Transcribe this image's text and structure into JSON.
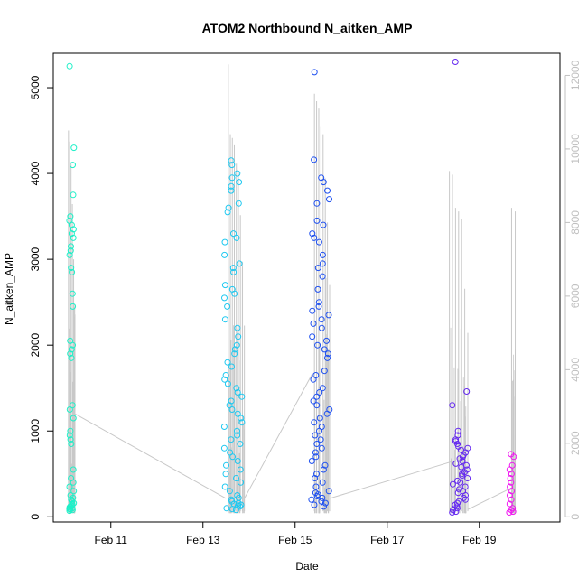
{
  "chart_data": {
    "type": "scatter",
    "title": "ATOM2 Northbound N_aitken_AMP",
    "xlabel": "Date",
    "ylabel": "N_aitken_AMP",
    "x_ticks": [
      "Feb 11",
      "Feb 13",
      "Feb 15",
      "Feb 17",
      "Feb 19"
    ],
    "x_tick_days": [
      11,
      13,
      15,
      17,
      19
    ],
    "xlim": [
      9.75,
      20.75
    ],
    "ylim_left": [
      -60,
      5400
    ],
    "y_ticks_left": [
      "0",
      "1000",
      "2000",
      "3000",
      "4000",
      "5000"
    ],
    "y_tick_values_left": [
      0,
      1000,
      2000,
      3000,
      4000,
      5000
    ],
    "ylim_right": [
      -140,
      12600
    ],
    "y_ticks_right": [
      "0",
      "2000",
      "4000",
      "6000",
      "8000",
      "10000",
      "12000"
    ],
    "y_tick_values_right": [
      0,
      2000,
      4000,
      6000,
      8000,
      10000,
      12000
    ],
    "colors": {
      "gray_series": "#c8c8c8",
      "gradient_start": "#00ffb4",
      "gradient_mid": "#0050ff",
      "gradient_end": "#ff00ff",
      "right_axis": "#c0c0c0"
    },
    "groups": [
      {
        "x_range": [
          10.1,
          10.2
        ],
        "color": "#1ef0c8",
        "y": [
          5250,
          4300,
          4100,
          3750,
          3500,
          3450,
          3400,
          3350,
          3300,
          3250,
          3150,
          3100,
          3050,
          2900,
          2850,
          2600,
          2450,
          2050,
          2000,
          1950,
          1900,
          1850,
          1300,
          1250,
          1150,
          1000,
          950,
          900,
          850,
          550,
          450,
          400,
          350,
          300,
          250,
          220,
          200,
          180,
          160,
          150,
          140,
          130,
          120,
          110,
          100,
          95,
          90,
          85,
          80,
          70
        ]
      },
      {
        "x_range": [
          13.45,
          13.85
        ],
        "color": "#1ec8f0",
        "y": [
          4150,
          4100,
          4000,
          3950,
          3900,
          3850,
          3800,
          3650,
          3600,
          3550,
          3300,
          3250,
          3200,
          3050,
          2950,
          2900,
          2850,
          2700,
          2650,
          2600,
          2550,
          2450,
          2300,
          2200,
          2100,
          2000,
          1950,
          1900,
          1800,
          1750,
          1650,
          1600,
          1550,
          1500,
          1450,
          1400,
          1350,
          1300,
          1250,
          1200,
          1150,
          1100,
          1050,
          1000,
          950,
          900,
          850,
          800,
          750,
          700,
          650,
          600,
          550,
          500,
          450,
          400,
          350,
          300,
          250,
          220,
          200,
          180,
          160,
          150,
          140,
          130,
          120,
          100,
          90,
          80
        ]
      },
      {
        "x_range": [
          15.35,
          15.75
        ],
        "color": "#1e50f0",
        "y": [
          5180,
          4160,
          3950,
          3900,
          3800,
          3700,
          3650,
          3450,
          3400,
          3300,
          3250,
          3200,
          3050,
          2950,
          2900,
          2800,
          2650,
          2500,
          2450,
          2400,
          2350,
          2300,
          2250,
          2200,
          2100,
          2050,
          2000,
          1950,
          1900,
          1850,
          1700,
          1650,
          1600,
          1500,
          1450,
          1400,
          1350,
          1300,
          1250,
          1200,
          1150,
          1100,
          1050,
          1000,
          950,
          900,
          850,
          800,
          750,
          700,
          650,
          600,
          550,
          500,
          450,
          400,
          350,
          300,
          280,
          260,
          240,
          220,
          200,
          180,
          160,
          140,
          120
        ]
      },
      {
        "x_range": [
          18.4,
          18.75
        ],
        "color": "#6428f0",
        "y": [
          5300,
          1460,
          1300,
          1000,
          950,
          900,
          880,
          850,
          820,
          800,
          780,
          750,
          720,
          700,
          680,
          650,
          620,
          600,
          580,
          550,
          520,
          500,
          480,
          450,
          420,
          400,
          380,
          350,
          320,
          300,
          280,
          250,
          220,
          200,
          180,
          160,
          140,
          120,
          100,
          80,
          60,
          50
        ]
      },
      {
        "x_range": [
          19.65,
          19.75
        ],
        "color": "#f014f0",
        "y": [
          730,
          700,
          600,
          550,
          500,
          450,
          400,
          350,
          300,
          250,
          200,
          150,
          100,
          80,
          60,
          50
        ]
      }
    ],
    "gray_bursts": [
      {
        "x_range": [
          10.08,
          10.22
        ],
        "peaks_right": [
          10500,
          10200,
          9600,
          8500,
          7000,
          5500
        ]
      },
      {
        "x_range": [
          13.55,
          13.9
        ],
        "peaks_right": [
          12300,
          10400,
          10300,
          10100,
          9600,
          9400,
          8200,
          6800,
          5200
        ]
      },
      {
        "x_range": [
          15.42,
          15.75
        ],
        "peaks_right": [
          11500,
          11300,
          11100,
          10600,
          10400,
          9200,
          8000,
          6300
        ]
      },
      {
        "x_range": [
          18.35,
          18.75
        ],
        "peaks_right": [
          9400,
          9300,
          8400,
          8300,
          8100,
          6200,
          5000
        ]
      },
      {
        "x_range": [
          19.7,
          19.78
        ],
        "peaks_right": [
          8400,
          8300
        ]
      }
    ],
    "gray_connectors": [
      {
        "x": [
          10.22,
          13.5
        ],
        "y_right": [
          2800,
          500
        ]
      },
      {
        "x": [
          13.9,
          15.38
        ],
        "y_right": [
          500,
          3900
        ]
      },
      {
        "x": [
          15.75,
          18.4
        ],
        "y_right": [
          500,
          1500
        ]
      },
      {
        "x": [
          18.75,
          19.72
        ],
        "y_right": [
          200,
          800
        ]
      }
    ]
  }
}
